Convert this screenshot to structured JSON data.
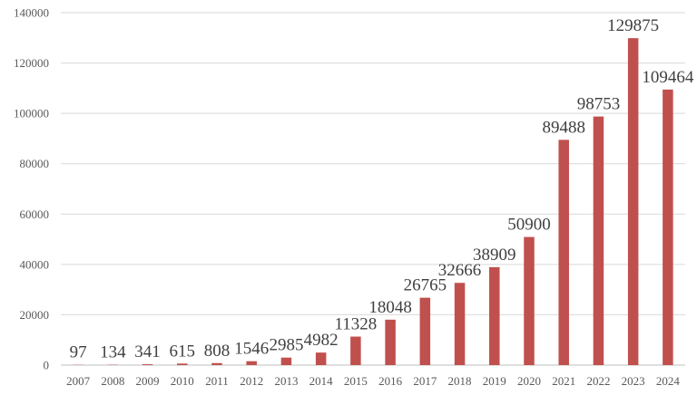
{
  "chart_data": {
    "type": "bar",
    "categories": [
      "2007",
      "2008",
      "2009",
      "2010",
      "2011",
      "2012",
      "2013",
      "2014",
      "2015",
      "2016",
      "2017",
      "2018",
      "2019",
      "2020",
      "2021",
      "2022",
      "2023",
      "2024"
    ],
    "values": [
      97,
      134,
      341,
      615,
      808,
      1546,
      2985,
      4982,
      11328,
      18048,
      26765,
      32666,
      38909,
      50900,
      89488,
      98753,
      129875,
      109464
    ],
    "data_labels": [
      "97",
      "134",
      "341",
      "615",
      "808",
      "1546",
      "2985",
      "4982",
      "11328",
      "18048",
      "26765",
      "32666",
      "38909",
      "50900",
      "89488",
      "98753",
      "129875",
      "109464"
    ],
    "y_ticks": [
      "0",
      "20000",
      "40000",
      "60000",
      "80000",
      "100000",
      "120000",
      "140000"
    ],
    "ylim": [
      0,
      140000
    ],
    "title": "",
    "xlabel": "",
    "ylabel": "",
    "grid": true,
    "legend": "none",
    "bar_color": "#c0504d"
  }
}
